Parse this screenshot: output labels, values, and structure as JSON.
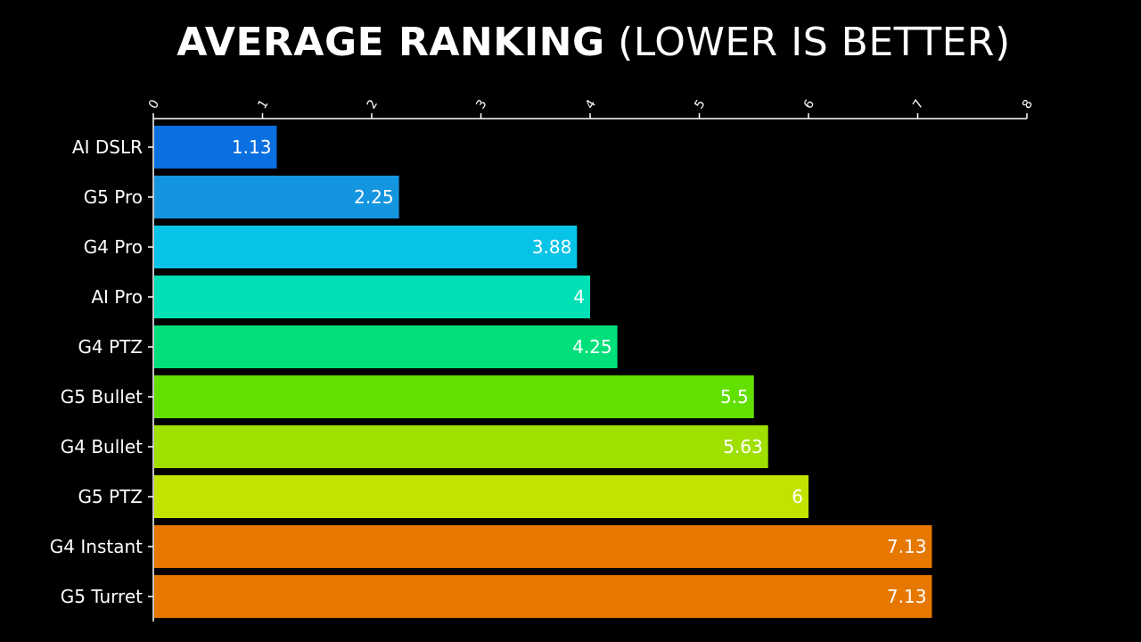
{
  "title_bold": "AVERAGE RANKING",
  "title_light": "(LOWER IS BETTER)",
  "chart_data": {
    "type": "bar",
    "orientation": "horizontal",
    "title": "AVERAGE RANKING (LOWER IS BETTER)",
    "categories": [
      "AI DSLR",
      "G5 Pro",
      "G4 Pro",
      "AI Pro",
      "G4 PTZ",
      "G5 Bullet",
      "G4 Bullet",
      "G5 PTZ",
      "G4 Instant",
      "G5 Turret"
    ],
    "values": [
      1.13,
      2.25,
      3.88,
      4,
      4.25,
      5.5,
      5.63,
      6,
      7.13,
      7.13
    ],
    "value_labels": [
      "1.13",
      "2.25",
      "3.88",
      "4",
      "4.25",
      "5.5",
      "5.63",
      "6",
      "7.13",
      "7.13"
    ],
    "bar_colors": [
      "#0a6fe0",
      "#1495e0",
      "#07c4e6",
      "#00e0b6",
      "#00df7a",
      "#62e000",
      "#9fe000",
      "#c2e200",
      "#e67700",
      "#e67700"
    ],
    "xlim": [
      0,
      8
    ],
    "xticks": [
      "0",
      "1",
      "2",
      "3",
      "4",
      "5",
      "6",
      "7",
      "8"
    ],
    "xaxis_position": "top",
    "xlabel": "",
    "ylabel": "",
    "grid": false,
    "legend": "none",
    "background": "#000000"
  }
}
